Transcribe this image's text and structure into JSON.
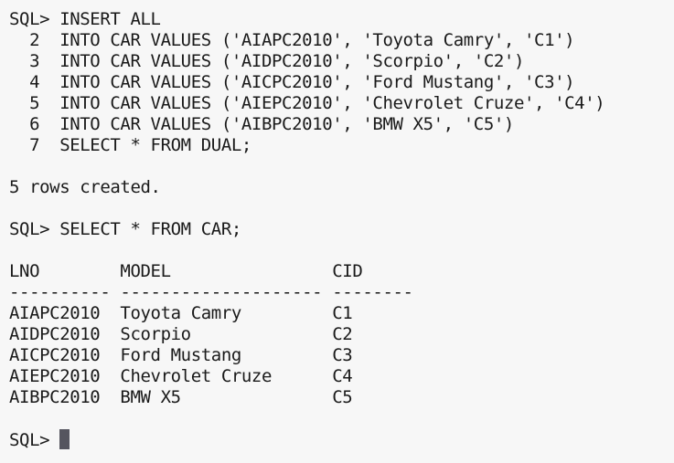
{
  "terminal": {
    "insert_block": [
      "SQL> INSERT ALL",
      "  2  INTO CAR VALUES ('AIAPC2010', 'Toyota Camry', 'C1')",
      "  3  INTO CAR VALUES ('AIDPC2010', 'Scorpio', 'C2')",
      "  4  INTO CAR VALUES ('AICPC2010', 'Ford Mustang', 'C3')",
      "  5  INTO CAR VALUES ('AIEPC2010', 'Chevrolet Cruze', 'C4')",
      "  6  INTO CAR VALUES ('AIBPC2010', 'BMW X5', 'C5')",
      "  7  SELECT * FROM DUAL;"
    ],
    "insert_result": "5 rows created.",
    "select_command": "SQL> SELECT * FROM CAR;",
    "result_header": "LNO        MODEL                CID",
    "result_separator": "---------- -------------------- --------",
    "result_rows": [
      "AIAPC2010  Toyota Camry         C1",
      "AIDPC2010  Scorpio              C2",
      "AICPC2010  Ford Mustang         C3",
      "AIEPC2010  Chevrolet Cruze      C4",
      "AIBPC2010  BMW X5               C5"
    ],
    "prompt": "SQL> "
  }
}
